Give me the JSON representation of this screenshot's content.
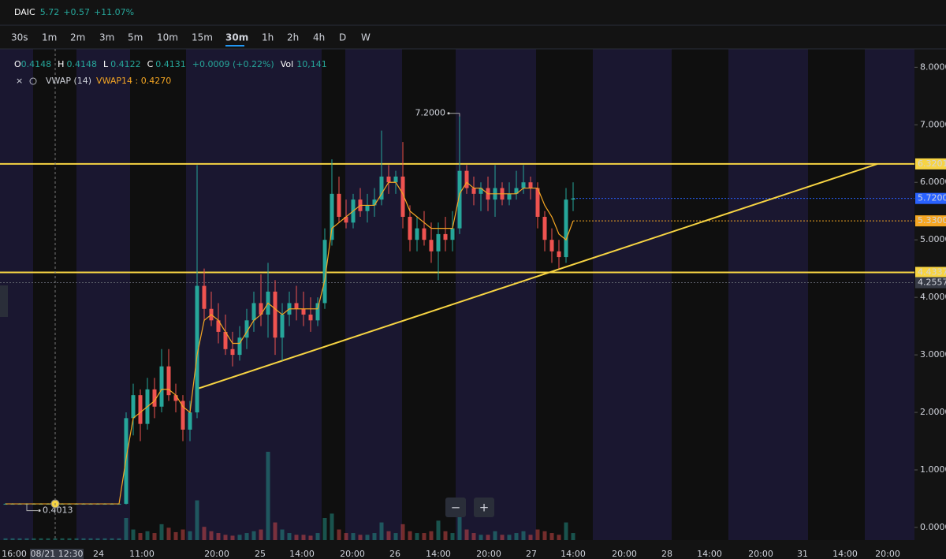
{
  "header": {
    "symbol": "DAIC",
    "price": "5.72",
    "change": "+0.57",
    "change_pct": "+11.07%"
  },
  "timeframes": [
    "30s",
    "1m",
    "2m",
    "3m",
    "5m",
    "10m",
    "15m",
    "30m",
    "1h",
    "2h",
    "4h",
    "D",
    "W"
  ],
  "selected_timeframe": "30m",
  "legend": {
    "o_label": "O",
    "o": "0.4148",
    "h_label": "H",
    "h": "0.4148",
    "l_label": "L",
    "l": "0.4122",
    "c_label": "C",
    "c": "0.4131",
    "change": "+0.0009 (+0.22%)",
    "vol_label": "Vol",
    "vol": "10,141"
  },
  "indicator": {
    "name": "VWAP (14)",
    "value": "VWAP14 : 0.4270"
  },
  "zoom": [
    "−",
    "+"
  ],
  "chart_data": {
    "type": "candlestick",
    "up_color": "#26a69a",
    "down_color": "#ef5350",
    "open": [
      0.41,
      0.41,
      0.41,
      0.41,
      0.41,
      0.41,
      0.41,
      0.41,
      0.41,
      0.41,
      0.41,
      0.41,
      0.41,
      0.41,
      0.41,
      0.41,
      0.41,
      0.41,
      1.9,
      2.3,
      1.8,
      2.4,
      2.1,
      2.8,
      2.3,
      2.2,
      1.7,
      2.0,
      4.2,
      3.8,
      3.6,
      3.4,
      3.1,
      3.0,
      3.3,
      3.6,
      3.9,
      3.7,
      4.1,
      3.3,
      3.7,
      3.9,
      3.8,
      3.7,
      3.6,
      3.9,
      5.0,
      5.8,
      5.4,
      5.3,
      5.7,
      5.5,
      5.6,
      5.7,
      6.1,
      6.0,
      6.1,
      5.4,
      5.0,
      5.2,
      5.0,
      4.8,
      5.1,
      5.0,
      5.2,
      6.2,
      5.9,
      5.8,
      5.9,
      5.7,
      5.9,
      5.7,
      5.8,
      5.9,
      6.0,
      5.9,
      5.4,
      5.0,
      4.8,
      4.7,
      5.7
    ],
    "high": [
      0.42,
      0.42,
      0.42,
      0.42,
      0.42,
      0.42,
      0.42,
      0.42,
      0.42,
      0.42,
      0.42,
      0.42,
      0.42,
      0.42,
      0.42,
      0.42,
      0.42,
      2.0,
      2.5,
      2.4,
      2.6,
      2.6,
      3.1,
      3.1,
      2.5,
      2.3,
      2.2,
      6.3,
      4.5,
      4.1,
      3.9,
      3.7,
      3.4,
      3.5,
      3.8,
      4.1,
      4.4,
      4.6,
      4.3,
      3.9,
      4.1,
      4.2,
      4.1,
      4.0,
      4.0,
      5.2,
      6.4,
      6.1,
      5.7,
      5.8,
      5.9,
      5.8,
      5.9,
      6.9,
      6.3,
      6.2,
      6.7,
      5.6,
      5.4,
      5.5,
      5.3,
      5.3,
      5.4,
      5.5,
      7.2,
      6.3,
      6.1,
      6.0,
      6.1,
      6.3,
      6.0,
      6.0,
      6.2,
      6.3,
      6.1,
      6.0,
      5.5,
      5.2,
      5.0,
      5.9,
      6.0
    ],
    "low": [
      0.4,
      0.4,
      0.4,
      0.4013,
      0.4,
      0.4,
      0.4,
      0.4,
      0.4,
      0.4,
      0.4,
      0.4,
      0.4,
      0.4,
      0.4,
      0.4,
      0.4,
      0.4,
      1.6,
      1.5,
      1.7,
      1.9,
      2.0,
      2.2,
      2.0,
      1.5,
      1.5,
      1.9,
      3.6,
      3.5,
      3.2,
      3.0,
      2.8,
      2.9,
      3.1,
      3.4,
      3.5,
      3.3,
      3.0,
      2.9,
      3.5,
      3.6,
      3.5,
      3.4,
      3.5,
      3.8,
      4.9,
      5.3,
      5.2,
      5.2,
      5.4,
      5.3,
      5.4,
      5.6,
      5.8,
      5.8,
      5.2,
      4.8,
      4.8,
      4.9,
      4.6,
      4.3,
      4.8,
      4.8,
      5.1,
      5.8,
      5.6,
      5.5,
      5.5,
      5.4,
      5.6,
      5.6,
      5.7,
      5.8,
      5.7,
      5.2,
      4.8,
      4.6,
      4.5,
      4.6,
      5.5
    ],
    "close": [
      0.41,
      0.41,
      0.41,
      0.41,
      0.41,
      0.41,
      0.41,
      0.41,
      0.41,
      0.41,
      0.41,
      0.41,
      0.41,
      0.41,
      0.41,
      0.41,
      0.41,
      1.9,
      2.3,
      1.8,
      2.4,
      2.1,
      2.8,
      2.3,
      2.2,
      1.7,
      2.0,
      4.2,
      3.8,
      3.6,
      3.4,
      3.1,
      3.0,
      3.3,
      3.6,
      3.9,
      3.7,
      4.1,
      3.3,
      3.7,
      3.9,
      3.8,
      3.7,
      3.6,
      3.9,
      5.0,
      5.8,
      5.4,
      5.3,
      5.7,
      5.5,
      5.6,
      5.7,
      6.1,
      6.0,
      6.1,
      5.4,
      5.0,
      5.2,
      5.0,
      4.8,
      5.1,
      5.0,
      5.2,
      6.2,
      5.9,
      5.8,
      5.9,
      5.7,
      5.9,
      5.7,
      5.8,
      5.9,
      6.0,
      5.9,
      5.4,
      5.0,
      4.8,
      4.7,
      5.7,
      5.72
    ],
    "vwap": {
      "color": "#f5a623",
      "values": [
        0.41,
        0.41,
        0.41,
        0.41,
        0.41,
        0.41,
        0.41,
        0.41,
        0.41,
        0.41,
        0.41,
        0.41,
        0.41,
        0.41,
        0.41,
        0.41,
        0.41,
        1.2,
        1.9,
        2.0,
        2.1,
        2.2,
        2.4,
        2.4,
        2.3,
        2.1,
        2.0,
        3.0,
        3.6,
        3.7,
        3.6,
        3.4,
        3.2,
        3.2,
        3.4,
        3.6,
        3.7,
        3.9,
        3.8,
        3.7,
        3.8,
        3.8,
        3.8,
        3.8,
        3.8,
        4.3,
        5.2,
        5.3,
        5.4,
        5.5,
        5.6,
        5.6,
        5.6,
        5.8,
        6.0,
        6.0,
        5.8,
        5.5,
        5.4,
        5.3,
        5.2,
        5.2,
        5.2,
        5.2,
        5.8,
        6.0,
        5.9,
        5.9,
        5.8,
        5.8,
        5.8,
        5.8,
        5.8,
        5.9,
        5.9,
        5.9,
        5.6,
        5.4,
        5.1,
        5.0,
        5.33
      ]
    },
    "volume": [
      2,
      2,
      2,
      2,
      2,
      2,
      2,
      2,
      2,
      2,
      2,
      2,
      2,
      2,
      2,
      2,
      2,
      25,
      12,
      8,
      10,
      8,
      18,
      14,
      9,
      12,
      10,
      45,
      15,
      10,
      8,
      6,
      5,
      6,
      8,
      10,
      12,
      100,
      20,
      12,
      8,
      6,
      6,
      5,
      8,
      25,
      30,
      12,
      8,
      8,
      6,
      6,
      8,
      20,
      10,
      8,
      18,
      10,
      8,
      8,
      10,
      22,
      10,
      8,
      35,
      12,
      8,
      6,
      6,
      10,
      6,
      6,
      8,
      10,
      6,
      12,
      10,
      8,
      6,
      20,
      8
    ],
    "ylim": [
      -0.22,
      8.32
    ],
    "yticks": [
      {
        "value": 0,
        "label": "0.0000"
      },
      {
        "value": 1,
        "label": "1.0000"
      },
      {
        "value": 2,
        "label": "2.0000"
      },
      {
        "value": 3,
        "label": "3.0000"
      },
      {
        "value": 4,
        "label": "4.0000"
      },
      {
        "value": 5,
        "label": "5.0000"
      },
      {
        "value": 6,
        "label": "6.0000"
      },
      {
        "value": 7,
        "label": "7.0000"
      },
      {
        "value": 8,
        "label": "8.0000"
      }
    ],
    "x_labels": [
      "16:00",
      "08/21 12:30",
      "24",
      "11:00",
      "20:00",
      "25",
      "14:00",
      "20:00",
      "26",
      "14:00",
      "20:00",
      "27",
      "14:00",
      "20:00",
      "28",
      "14:00",
      "20:00",
      "31",
      "14:00",
      "20:00"
    ],
    "levels": [
      {
        "value": 6.3201,
        "color": "#f7d443"
      },
      {
        "value": 4.4337,
        "color": "#f7d443"
      }
    ],
    "trendline": {
      "from": 2.4,
      "to": 6.3201,
      "color": "#f7d443"
    },
    "price_lines": [
      {
        "value": 5.72,
        "color": "#2962ff"
      },
      {
        "value": 5.33,
        "color": "#f5a623"
      },
      {
        "value": 4.2557,
        "color": "#5d606b"
      }
    ],
    "price_tags": [
      {
        "value": 6.3201,
        "label": "6.3201",
        "color": "#f7d443",
        "text_color": "#000000"
      },
      {
        "value": 5.72,
        "label": "5.7200",
        "color": "#2962ff",
        "text_color": "#ffffff"
      },
      {
        "value": 5.33,
        "label": "5.3300",
        "color": "#f5a623",
        "text_color": "#000000"
      },
      {
        "value": 4.4337,
        "label": "4.4337",
        "color": "#f7d443",
        "text_color": "#000000"
      },
      {
        "value": 4.2557,
        "label": "4.2557",
        "color": "#363a45",
        "text_color": "#ffffff"
      }
    ],
    "high_annotation": {
      "value": 7.2,
      "label": "7.2000"
    },
    "low_annotation": {
      "value": 0.4013,
      "label": "0.4013"
    }
  }
}
